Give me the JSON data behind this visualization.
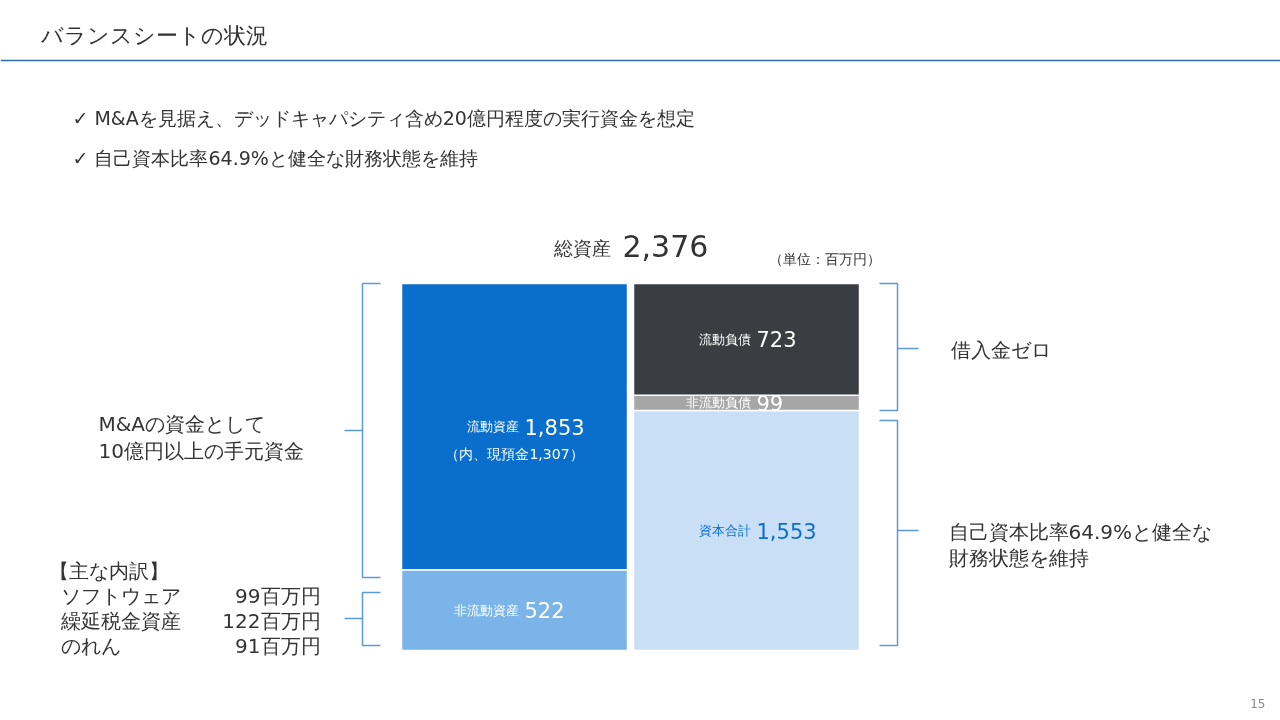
{
  "chart_data": {
    "type": "bar",
    "stacked": true,
    "title": "バランスシートの状況",
    "categories": [
      null,
      null
    ],
    "series": [
      {
        "name": "非流動資産",
        "color": "#7ab4e8",
        "values": [
          522,
          null
        ],
        "value_labels": [
          "522",
          null
        ]
      },
      {
        "name": "流動資産",
        "color": "#0a6ecd",
        "values": [
          1853,
          null
        ],
        "value_labels": [
          "1,853",
          null
        ]
      },
      {
        "name": "資本合計",
        "color": "#c9dff5",
        "values": [
          null,
          1553
        ],
        "value_labels": [
          null,
          "1,553"
        ]
      },
      {
        "name": "非流動負債",
        "color": "#a6a6a6",
        "values": [
          null,
          99
        ],
        "value_labels": [
          null,
          "99"
        ]
      },
      {
        "name": "流動負債",
        "color": "#3a3d42",
        "values": [
          null,
          723
        ],
        "value_labels": [
          null,
          "723"
        ]
      }
    ],
    "tick_labels": false,
    "grid": false,
    "annotations": [
      "✓ M&Aを見据え、デッドキャパシティ含め20億円程度の実行資金を想定",
      "✓ 自己資本比率64.9%と健全な財務状態を維持",
      "総資産\t2,376",
      "（単位：百万円）",
      "（内、現預金1,307）",
      "M&Aの資金として",
      "10億円以上の手元資金",
      "借入金ゼロ",
      "自己資本比率64.9%と健全な",
      "財務状態を維持",
      "【主な内訳】",
      "ソフトウェア\t99百万円",
      "繰延税金資産\t122百万円",
      "のれん\t91百万円",
      "15"
    ]
  }
}
